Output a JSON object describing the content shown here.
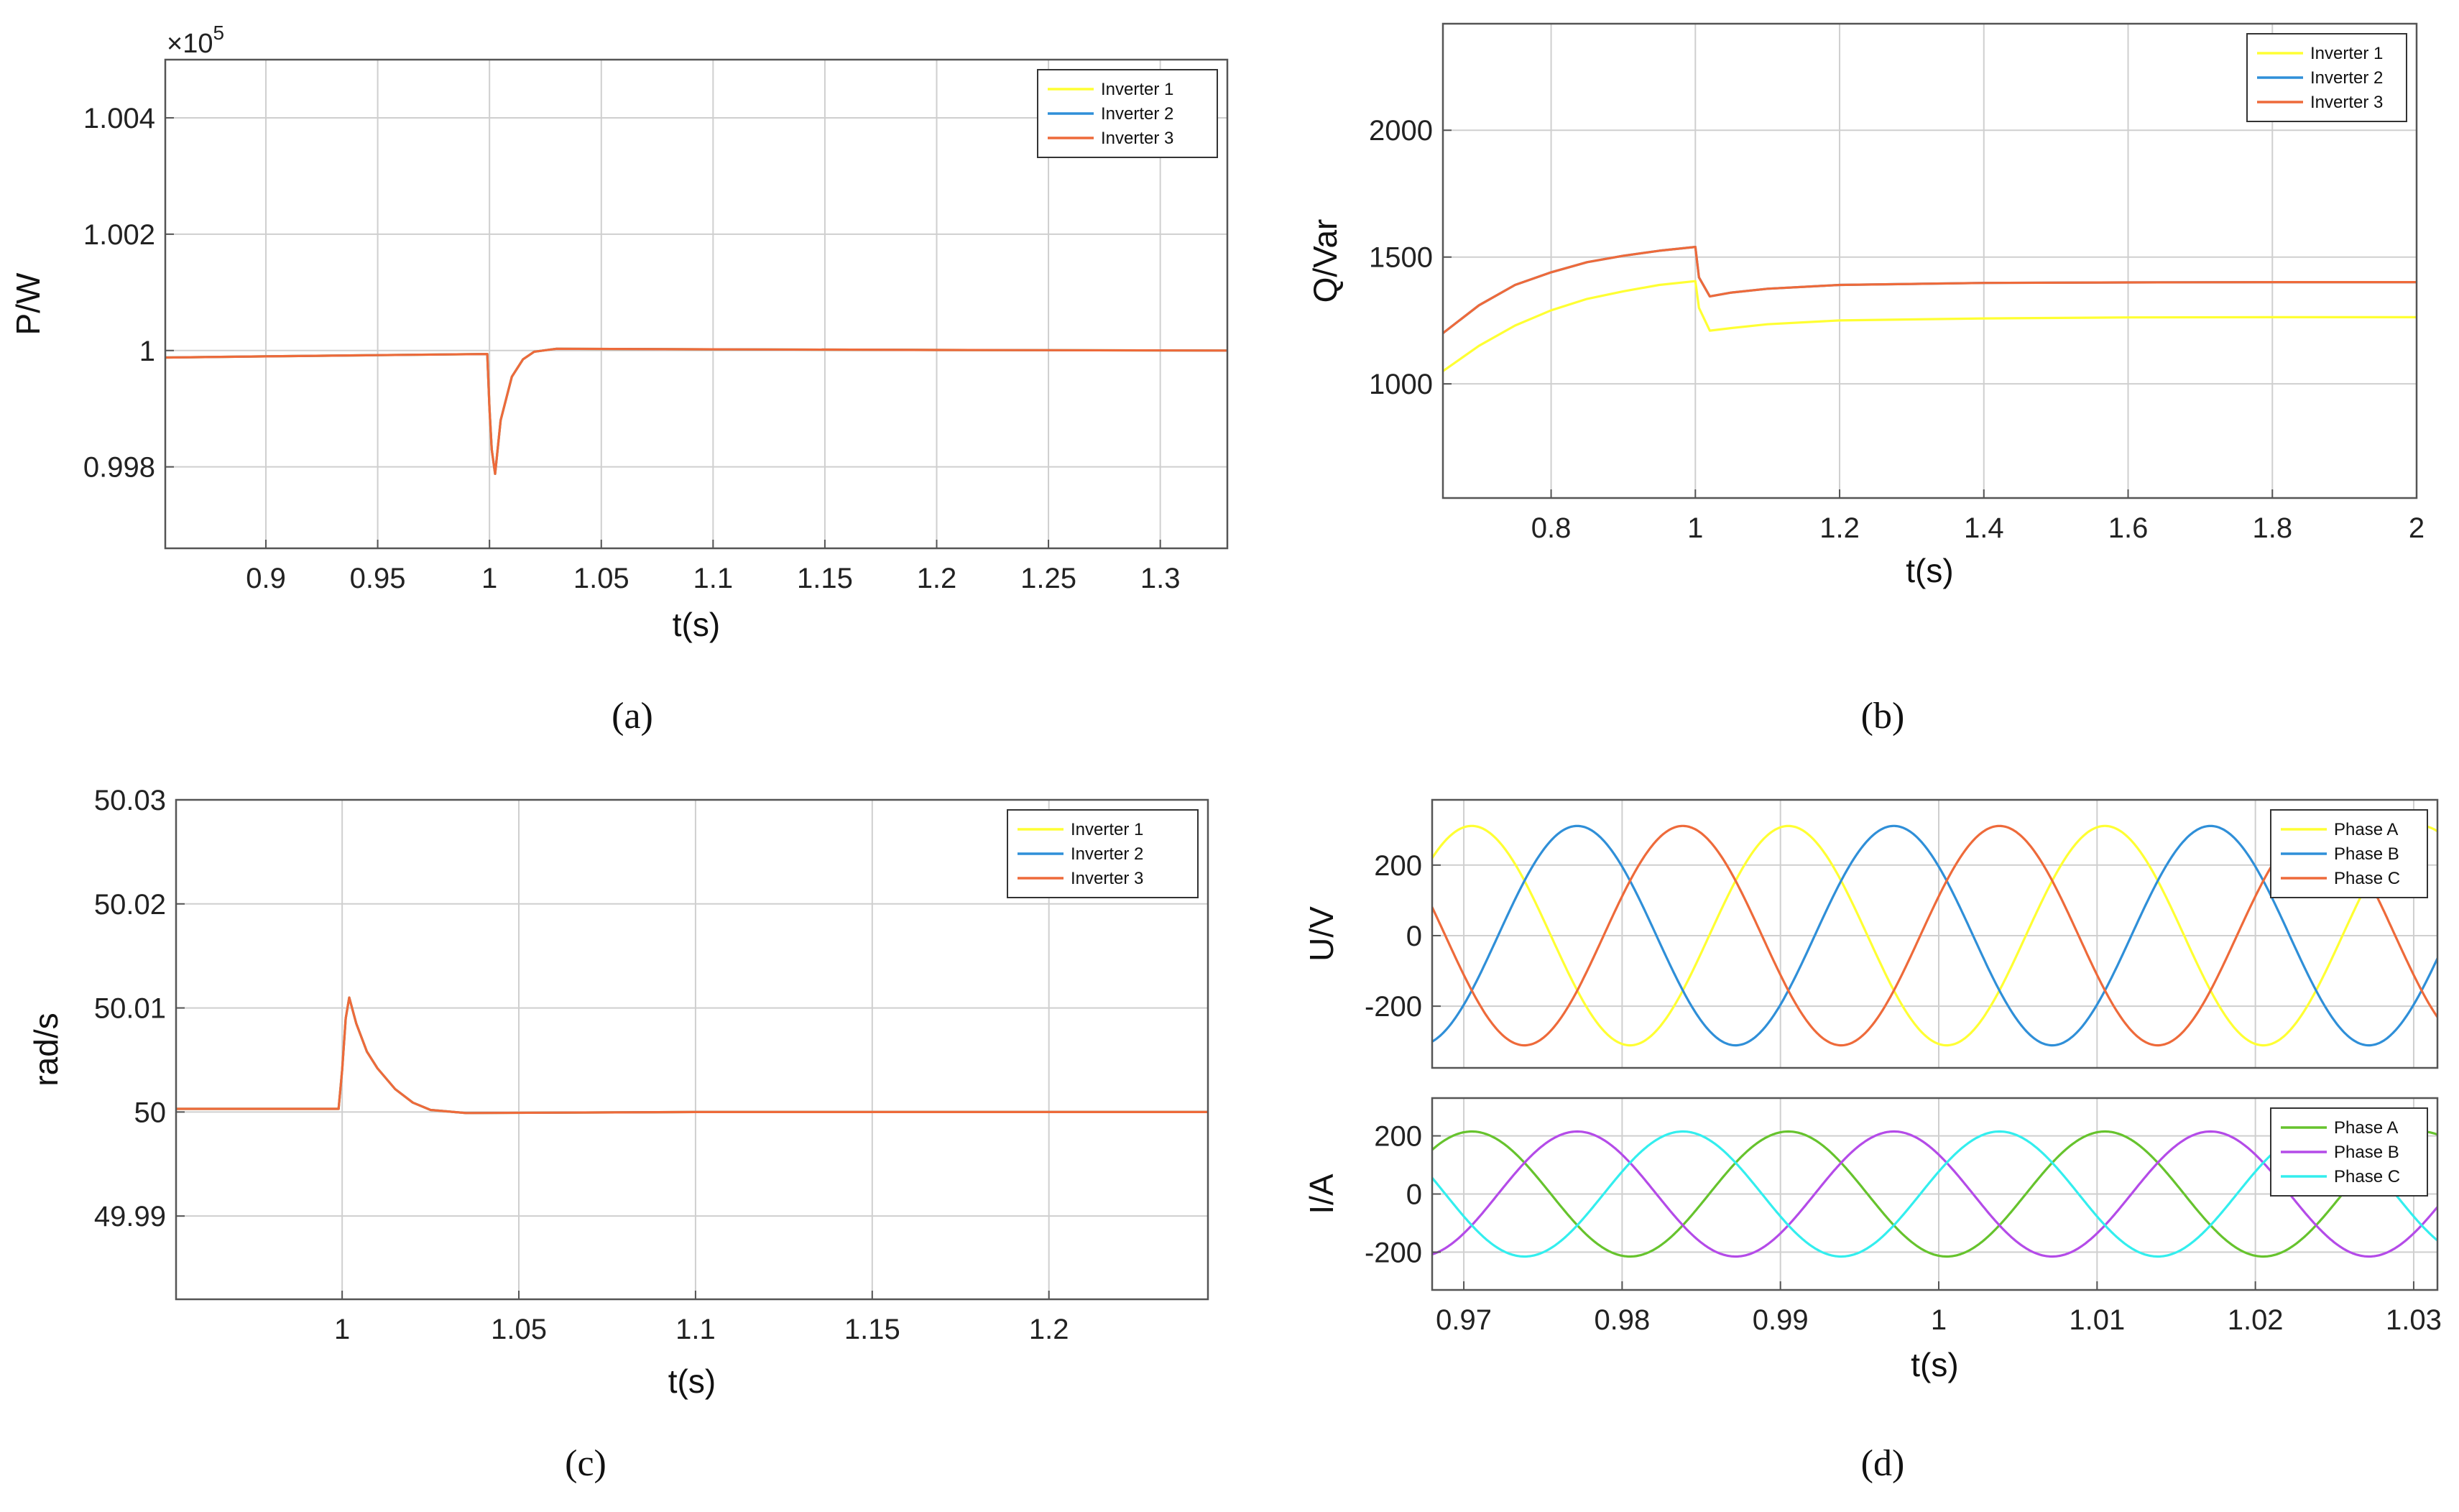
{
  "colors": {
    "yellow": "#ffff33",
    "blue": "#2f8fd8",
    "orange": "#ee6a3a",
    "green": "#66c32d",
    "purple": "#b44be8",
    "cyan": "#33eeee",
    "grid": "#cfcfcf",
    "axis": "#555555"
  },
  "chart_data": [
    {
      "type": "line",
      "caption": "(a)",
      "xlabel": "t(s)",
      "ylabel": "P/W",
      "exponent_label": "×10",
      "exponent_power": "5",
      "xlim": [
        0.855,
        1.33
      ],
      "ylim": [
        0.9966,
        1.005
      ],
      "xticks": [
        0.9,
        0.95,
        1,
        1.05,
        1.1,
        1.15,
        1.2,
        1.25,
        1.3
      ],
      "xtick_labels": [
        "0.9",
        "0.95",
        "1",
        "1.05",
        "1.1",
        "1.15",
        "1.2",
        "1.25",
        "1.3"
      ],
      "yticks": [
        0.998,
        1,
        1.002,
        1.004
      ],
      "ytick_labels": [
        "0.998",
        "1",
        "1.002",
        "1.004"
      ],
      "grid": true,
      "legend_position": "top-right",
      "series": [
        {
          "name": "Inverter 1",
          "color": "yellow",
          "x": [
            0.855,
            0.9,
            0.95,
            0.999,
            1.0,
            1.001,
            1.0025,
            1.005,
            1.01,
            1.015,
            1.02,
            1.03,
            1.1,
            1.2,
            1.33
          ],
          "y": [
            0.99988,
            0.9999,
            0.99992,
            0.99994,
            0.999,
            0.9983,
            0.99788,
            0.9988,
            0.99955,
            0.99985,
            0.99998,
            1.00003,
            1.00002,
            1.00001,
            1.0
          ]
        },
        {
          "name": "Inverter 2",
          "color": "blue",
          "x": [
            0.855,
            0.9,
            0.95,
            0.999,
            1.0,
            1.001,
            1.0025,
            1.005,
            1.01,
            1.015,
            1.02,
            1.03,
            1.1,
            1.2,
            1.33
          ],
          "y": [
            0.99988,
            0.9999,
            0.99992,
            0.99994,
            0.999,
            0.9983,
            0.99788,
            0.9988,
            0.99955,
            0.99985,
            0.99998,
            1.00003,
            1.00002,
            1.00001,
            1.0
          ]
        },
        {
          "name": "Inverter 3",
          "color": "orange",
          "x": [
            0.855,
            0.9,
            0.95,
            0.999,
            1.0,
            1.001,
            1.0025,
            1.005,
            1.01,
            1.015,
            1.02,
            1.03,
            1.1,
            1.2,
            1.33
          ],
          "y": [
            0.99988,
            0.9999,
            0.99992,
            0.99994,
            0.999,
            0.9983,
            0.99788,
            0.9988,
            0.99955,
            0.99985,
            0.99998,
            1.00003,
            1.00002,
            1.00001,
            1.0
          ]
        }
      ]
    },
    {
      "type": "line",
      "caption": "(b)",
      "xlabel": "t(s)",
      "ylabel": "Q/Var",
      "xlim": [
        0.65,
        2.0
      ],
      "ylim": [
        550,
        2420
      ],
      "xticks": [
        0.8,
        1,
        1.2,
        1.4,
        1.6,
        1.8,
        2
      ],
      "xtick_labels": [
        "0.8",
        "1",
        "1.2",
        "1.4",
        "1.6",
        "1.8",
        "2"
      ],
      "yticks": [
        1000,
        1500,
        2000
      ],
      "ytick_labels": [
        "1000",
        "1500",
        "2000"
      ],
      "grid": true,
      "legend_position": "top-right",
      "series": [
        {
          "name": "Inverter 1",
          "color": "yellow",
          "x": [
            0.65,
            0.7,
            0.75,
            0.8,
            0.85,
            0.9,
            0.95,
            1.0,
            1.005,
            1.02,
            1.05,
            1.1,
            1.2,
            1.4,
            1.6,
            1.8,
            2.0
          ],
          "y": [
            1050,
            1150,
            1230,
            1290,
            1335,
            1365,
            1390,
            1405,
            1300,
            1210,
            1220,
            1235,
            1250,
            1258,
            1262,
            1263,
            1263
          ]
        },
        {
          "name": "Inverter 2",
          "color": "blue",
          "x": [
            0.65,
            0.7,
            0.75,
            0.8,
            0.85,
            0.9,
            0.95,
            1.0,
            1.005,
            1.02,
            1.05,
            1.1,
            1.2,
            1.4,
            1.6,
            1.8,
            2.0
          ],
          "y": [
            1200,
            1310,
            1390,
            1440,
            1480,
            1505,
            1525,
            1540,
            1420,
            1345,
            1360,
            1375,
            1390,
            1398,
            1400,
            1401,
            1401
          ]
        },
        {
          "name": "Inverter 3",
          "color": "orange",
          "x": [
            0.65,
            0.7,
            0.75,
            0.8,
            0.85,
            0.9,
            0.95,
            1.0,
            1.005,
            1.02,
            1.05,
            1.1,
            1.2,
            1.4,
            1.6,
            1.8,
            2.0
          ],
          "y": [
            1200,
            1310,
            1390,
            1440,
            1480,
            1505,
            1525,
            1540,
            1420,
            1345,
            1360,
            1375,
            1390,
            1398,
            1400,
            1401,
            1401
          ]
        }
      ]
    },
    {
      "type": "line",
      "caption": "(c)",
      "xlabel": "t(s)",
      "ylabel": "rad/s",
      "xlim": [
        0.953,
        1.245
      ],
      "ylim": [
        49.982,
        50.03
      ],
      "xticks": [
        1,
        1.05,
        1.1,
        1.15,
        1.2
      ],
      "xtick_labels": [
        "1",
        "1.05",
        "1.1",
        "1.15",
        "1.2"
      ],
      "yticks": [
        49.99,
        50,
        50.01,
        50.02,
        50.03
      ],
      "ytick_labels": [
        "49.99",
        "50",
        "50.01",
        "50.02",
        "50.03"
      ],
      "grid": true,
      "legend_position": "top-right",
      "series": [
        {
          "name": "Inverter 1",
          "color": "yellow",
          "x": [
            0.953,
            0.98,
            0.999,
            1.0,
            1.001,
            1.002,
            1.004,
            1.007,
            1.01,
            1.015,
            1.02,
            1.025,
            1.035,
            1.1,
            1.2,
            1.245
          ],
          "y": [
            50.0003,
            50.0003,
            50.0003,
            50.004,
            50.009,
            50.011,
            50.0085,
            50.0058,
            50.0042,
            50.0022,
            50.0009,
            50.0002,
            49.9999,
            50.0,
            50.0,
            50.0
          ]
        },
        {
          "name": "Inverter 2",
          "color": "blue",
          "x": [
            0.953,
            0.98,
            0.999,
            1.0,
            1.001,
            1.002,
            1.004,
            1.007,
            1.01,
            1.015,
            1.02,
            1.025,
            1.035,
            1.1,
            1.2,
            1.245
          ],
          "y": [
            50.0003,
            50.0003,
            50.0003,
            50.004,
            50.009,
            50.011,
            50.0085,
            50.0058,
            50.0042,
            50.0022,
            50.0009,
            50.0002,
            49.9999,
            50.0,
            50.0,
            50.0
          ]
        },
        {
          "name": "Inverter 3",
          "color": "orange",
          "x": [
            0.953,
            0.98,
            0.999,
            1.0,
            1.001,
            1.002,
            1.004,
            1.007,
            1.01,
            1.015,
            1.02,
            1.025,
            1.035,
            1.1,
            1.2,
            1.245
          ],
          "y": [
            50.0003,
            50.0003,
            50.0003,
            50.004,
            50.009,
            50.011,
            50.0085,
            50.0058,
            50.0042,
            50.0022,
            50.0009,
            50.0002,
            49.9999,
            50.0,
            50.0,
            50.0
          ]
        }
      ]
    },
    {
      "type": "line",
      "caption": "(d)",
      "xlabel": "t(s)",
      "ylabel": "U/V",
      "xlim": [
        0.968,
        1.0315
      ],
      "ylim": [
        -375,
        385
      ],
      "yticks": [
        -200,
        0,
        200
      ],
      "ytick_labels": [
        "-200",
        "0",
        "200"
      ],
      "grid": true,
      "legend_position": "top-right",
      "waveform": {
        "amplitude": 311,
        "frequency": 50
      },
      "series": [
        {
          "name": "Phase A",
          "color": "yellow",
          "phase_deg": 0
        },
        {
          "name": "Phase B",
          "color": "blue",
          "phase_deg": -120
        },
        {
          "name": "Phase C",
          "color": "orange",
          "phase_deg": 120
        }
      ]
    },
    {
      "type": "line",
      "caption": "",
      "xlabel": "t(s)",
      "ylabel": "I/A",
      "xlim": [
        0.968,
        1.0315
      ],
      "ylim": [
        -330,
        330
      ],
      "xticks": [
        0.97,
        0.98,
        0.99,
        1,
        1.01,
        1.02,
        1.03
      ],
      "xtick_labels": [
        "0.97",
        "0.98",
        "0.99",
        "1",
        "1.01",
        "1.02",
        "1.03"
      ],
      "yticks": [
        -200,
        0,
        200
      ],
      "ytick_labels": [
        "-200",
        "0",
        "200"
      ],
      "grid": true,
      "legend_position": "top-right",
      "waveform": {
        "amplitude": 215,
        "frequency": 50
      },
      "series": [
        {
          "name": "Phase A",
          "color": "green",
          "phase_deg": 0
        },
        {
          "name": "Phase B",
          "color": "purple",
          "phase_deg": -120
        },
        {
          "name": "Phase C",
          "color": "cyan",
          "phase_deg": 120
        }
      ]
    }
  ]
}
